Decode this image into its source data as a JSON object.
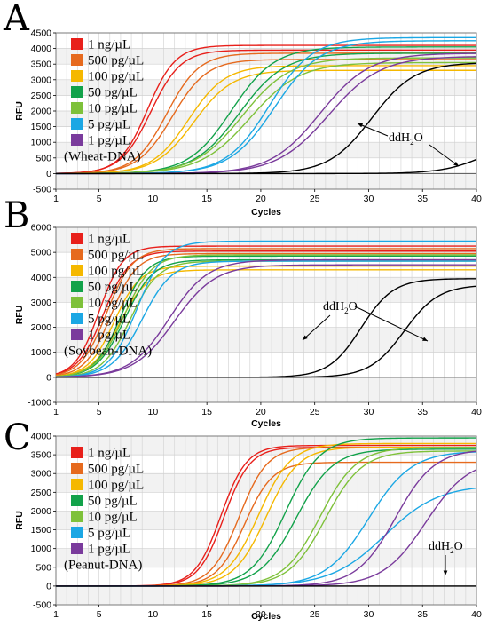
{
  "figure": {
    "legend_entries": [
      "1 ng/µL",
      "500 pg/µL",
      "100 pg/µL",
      "50 pg/µL",
      "10 pg/µL",
      "5 pg/µL",
      "1 pg/µL"
    ],
    "legend_colors": [
      "#e8201b",
      "#e66a1e",
      "#f5b800",
      "#12a24a",
      "#7ec13a",
      "#1ba7e4",
      "#7a3b9c"
    ],
    "control_color": "#000000"
  },
  "chart_data": [
    {
      "panel": "A",
      "type": "line",
      "sample_label": "(Wheat-DNA)",
      "xlabel": "Cycles",
      "ylabel": "RFU",
      "xlim": [
        1,
        40
      ],
      "ylim": [
        -500,
        4500
      ],
      "xticks": [
        1,
        5,
        10,
        15,
        20,
        25,
        30,
        35,
        40
      ],
      "yticks": [
        -500,
        0,
        500,
        1000,
        1500,
        2000,
        2500,
        3000,
        3500,
        4000,
        4500
      ],
      "grid": true,
      "legend_position": "top-left",
      "series": [
        {
          "name": "1 ng/µL",
          "color": "#e8201b",
          "curves": [
            {
              "plateau": 4100,
              "midpoint": 9.5,
              "slope": 1.3
            },
            {
              "plateau": 3950,
              "midpoint": 9.8,
              "slope": 1.4
            }
          ]
        },
        {
          "name": "500 pg/µL",
          "color": "#e66a1e",
          "curves": [
            {
              "plateau": 3850,
              "midpoint": 11.3,
              "slope": 1.5
            },
            {
              "plateau": 3650,
              "midpoint": 11.8,
              "slope": 1.6
            }
          ]
        },
        {
          "name": "100 pg/µL",
          "color": "#f5b800",
          "curves": [
            {
              "plateau": 3450,
              "midpoint": 13.3,
              "slope": 1.7
            },
            {
              "plateau": 3300,
              "midpoint": 13.8,
              "slope": 1.8
            }
          ]
        },
        {
          "name": "50 pg/µL",
          "color": "#12a24a",
          "curves": [
            {
              "plateau": 4050,
              "midpoint": 17.3,
              "slope": 2.0
            },
            {
              "plateau": 3850,
              "midpoint": 18.0,
              "slope": 2.1
            }
          ]
        },
        {
          "name": "10 pg/µL",
          "color": "#7ec13a",
          "curves": [
            {
              "plateau": 3700,
              "midpoint": 18.3,
              "slope": 2.2
            },
            {
              "plateau": 3550,
              "midpoint": 19.0,
              "slope": 2.3
            }
          ]
        },
        {
          "name": "5 pg/µL",
          "color": "#1ba7e4",
          "curves": [
            {
              "plateau": 4350,
              "midpoint": 20.8,
              "slope": 2.0
            },
            {
              "plateau": 4250,
              "midpoint": 21.3,
              "slope": 2.1
            }
          ]
        },
        {
          "name": "1 pg/µL",
          "color": "#7a3b9c",
          "curves": [
            {
              "plateau": 3850,
              "midpoint": 25.5,
              "slope": 2.3
            },
            {
              "plateau": 3750,
              "midpoint": 26.3,
              "slope": 2.4
            }
          ]
        },
        {
          "name": "ddH2O",
          "color": "#000000",
          "curves": [
            {
              "plateau": 3550,
              "midpoint": 30.3,
              "slope": 2.0
            },
            {
              "plateau": 1200,
              "midpoint": 41.0,
              "slope": 2.0
            }
          ]
        }
      ],
      "annotation": {
        "text": "ddH",
        "subscript": "2",
        "suffix": "O"
      }
    },
    {
      "panel": "B",
      "type": "line",
      "sample_label": "(Soybean-DNA)",
      "xlabel": "Cycles",
      "ylabel": "RFU",
      "xlim": [
        1,
        40
      ],
      "ylim": [
        -1000,
        6000
      ],
      "xticks": [
        1,
        5,
        10,
        15,
        20,
        25,
        30,
        35,
        40
      ],
      "yticks": [
        -1000,
        0,
        1000,
        2000,
        3000,
        4000,
        5000,
        6000
      ],
      "grid": true,
      "legend_position": "top-left",
      "series": [
        {
          "name": "1 ng/µL",
          "color": "#e8201b",
          "curves": [
            {
              "plateau": 5250,
              "midpoint": 5.0,
              "slope": 1.1
            },
            {
              "plateau": 5050,
              "midpoint": 5.4,
              "slope": 1.2
            }
          ]
        },
        {
          "name": "500 pg/µL",
          "color": "#e66a1e",
          "curves": [
            {
              "plateau": 5150,
              "midpoint": 5.7,
              "slope": 1.2
            },
            {
              "plateau": 4950,
              "midpoint": 6.1,
              "slope": 1.2
            }
          ]
        },
        {
          "name": "100 pg/µL",
          "color": "#f5b800",
          "curves": [
            {
              "plateau": 4450,
              "midpoint": 6.4,
              "slope": 1.2
            },
            {
              "plateau": 4300,
              "midpoint": 6.9,
              "slope": 1.3
            }
          ]
        },
        {
          "name": "50 pg/µL",
          "color": "#12a24a",
          "curves": [
            {
              "plateau": 4850,
              "midpoint": 7.0,
              "slope": 1.2
            },
            {
              "plateau": 4700,
              "midpoint": 7.4,
              "slope": 1.3
            }
          ]
        },
        {
          "name": "10 pg/µL",
          "color": "#7ec13a",
          "curves": [
            {
              "plateau": 4900,
              "midpoint": 7.3,
              "slope": 1.3
            },
            {
              "plateau": 4650,
              "midpoint": 7.9,
              "slope": 1.3
            }
          ]
        },
        {
          "name": "5 pg/µL",
          "color": "#1ba7e4",
          "curves": [
            {
              "plateau": 5450,
              "midpoint": 8.5,
              "slope": 1.3
            },
            {
              "plateau": 4650,
              "midpoint": 9.0,
              "slope": 1.4
            }
          ]
        },
        {
          "name": "1 pg/µL",
          "color": "#7a3b9c",
          "curves": [
            {
              "plateau": 4700,
              "midpoint": 11.5,
              "slope": 1.8
            },
            {
              "plateau": 4500,
              "midpoint": 12.0,
              "slope": 1.9
            }
          ]
        },
        {
          "name": "ddH2O",
          "color": "#000000",
          "curves": [
            {
              "plateau": 3950,
              "midpoint": 29.3,
              "slope": 1.5
            },
            {
              "plateau": 3700,
              "midpoint": 33.3,
              "slope": 1.6
            }
          ]
        }
      ],
      "annotation": {
        "text": "ddH",
        "subscript": "2",
        "suffix": "O"
      }
    },
    {
      "panel": "C",
      "type": "line",
      "sample_label": "(Peanut-DNA)",
      "xlabel": "Cycles",
      "ylabel": "RFU",
      "xlim": [
        1,
        40
      ],
      "ylim": [
        -500,
        4000
      ],
      "xticks": [
        1,
        5,
        10,
        15,
        20,
        25,
        30,
        35,
        40
      ],
      "yticks": [
        -500,
        0,
        500,
        1000,
        1500,
        2000,
        2500,
        3000,
        3500,
        4000
      ],
      "grid": true,
      "legend_position": "top-left",
      "series": [
        {
          "name": "1 ng/µL",
          "color": "#e8201b",
          "curves": [
            {
              "plateau": 3750,
              "midpoint": 16.3,
              "slope": 1.2
            },
            {
              "plateau": 3700,
              "midpoint": 16.6,
              "slope": 1.2
            }
          ]
        },
        {
          "name": "500 pg/µL",
          "color": "#e66a1e",
          "curves": [
            {
              "plateau": 3700,
              "midpoint": 18.0,
              "slope": 1.3
            },
            {
              "plateau": 3300,
              "midpoint": 18.5,
              "slope": 1.3
            }
          ]
        },
        {
          "name": "100 pg/µL",
          "color": "#f5b800",
          "curves": [
            {
              "plateau": 3800,
              "midpoint": 19.8,
              "slope": 1.5
            },
            {
              "plateau": 3700,
              "midpoint": 20.5,
              "slope": 1.5
            }
          ]
        },
        {
          "name": "50 pg/µL",
          "color": "#12a24a",
          "curves": [
            {
              "plateau": 3950,
              "midpoint": 22.3,
              "slope": 1.6
            },
            {
              "plateau": 3650,
              "midpoint": 23.3,
              "slope": 1.7
            }
          ]
        },
        {
          "name": "10 pg/µL",
          "color": "#7ec13a",
          "curves": [
            {
              "plateau": 3700,
              "midpoint": 25.5,
              "slope": 1.7
            },
            {
              "plateau": 3600,
              "midpoint": 26.0,
              "slope": 1.7
            }
          ]
        },
        {
          "name": "5 pg/µL",
          "color": "#1ba7e4",
          "curves": [
            {
              "plateau": 3600,
              "midpoint": 30.0,
              "slope": 2.0
            },
            {
              "plateau": 2700,
              "midpoint": 31.5,
              "slope": 2.5
            }
          ]
        },
        {
          "name": "1 pg/µL",
          "color": "#7a3b9c",
          "curves": [
            {
              "plateau": 3650,
              "midpoint": 32.5,
              "slope": 1.8
            },
            {
              "plateau": 3400,
              "midpoint": 35.3,
              "slope": 2.0
            }
          ]
        },
        {
          "name": "ddH2O",
          "color": "#000000",
          "curves": [
            {
              "plateau": 0,
              "midpoint": 60,
              "slope": 2.0
            }
          ]
        }
      ],
      "annotation": {
        "text": "ddH",
        "subscript": "2",
        "suffix": "O"
      }
    }
  ]
}
